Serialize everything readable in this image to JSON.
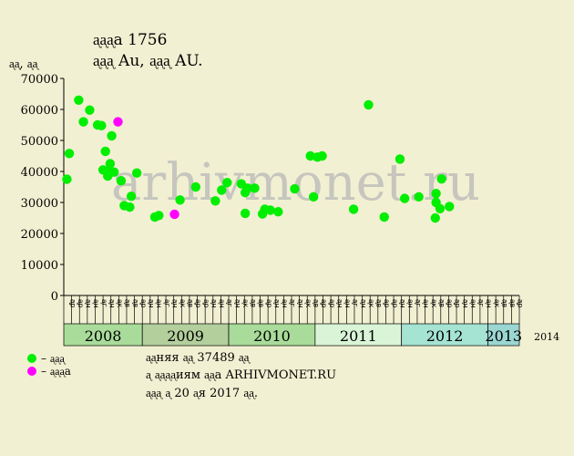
{
  "header": {
    "title": "ᶏᶏᶏа 1756",
    "subtitle": "ᶏᶏᶏ Au, ᶏᶏᶏ AU.",
    "y_unit": "ᶏᶏ, ᶏᶏ"
  },
  "watermark": "arhivmonet.ru",
  "legend": {
    "items": [
      {
        "label": "– ᶏᶏᶏ",
        "color": "#00ee00"
      },
      {
        "label": "– ᶏᶏᶏа",
        "color": "#ff00ff"
      }
    ]
  },
  "footer": {
    "lines": [
      "ᶏᶏняя ᶏᶏ 37489 ᶏᶏ",
      "ᶏ ᶏᶏᶏᶏиям ᶏᶏа ARHIVMONET.RU",
      "ᶏᶏᶏ ᶏ 20 ᶏя 2017 ᶏᶏ."
    ]
  },
  "colors": {
    "background": "#f2f0d2",
    "sold": "#00ee00",
    "highlight": "#ff00ff"
  },
  "chart_data": {
    "type": "scatter",
    "ylim": [
      0,
      70000
    ],
    "yticks": [
      0,
      10000,
      20000,
      30000,
      40000,
      50000,
      60000,
      70000
    ],
    "grid": false,
    "month_labels": [
      "ᶏр",
      "ᶏр",
      "ᶏн",
      "ᶏн",
      "ᶏг",
      "ᶏн",
      "ᶏк",
      "ᶏв",
      "ᶏв",
      "ᶏр",
      "ᶏн",
      "ᶏн",
      "ᶏг",
      "ᶏн",
      "ᶏк",
      "ᶏв",
      "ᶏр",
      "ᶏр",
      "ᶏн",
      "ᶏн",
      "ᶏг",
      "ᶏн",
      "ᶏк",
      "ᶏв",
      "ᶏв",
      "ᶏр",
      "ᶏн",
      "ᶏн",
      "ᶏг",
      "ᶏн",
      "ᶏк",
      "ᶏв",
      "ᶏр",
      "ᶏр",
      "ᶏн",
      "ᶏн",
      "ᶏг",
      "ᶏн",
      "ᶏк",
      "ᶏв",
      "ᶏр",
      "ᶏр",
      "ᶏн",
      "ᶏн",
      "ᶏг",
      "ᶏн",
      "ᶏк",
      "ᶏв",
      "ᶏр",
      "ᶏр",
      "ᶏн",
      "ᶏн",
      "ᶏг",
      "ᶏн",
      "ᶏк",
      "ᶏв",
      "ᶏв",
      "ᶏр"
    ],
    "years": [
      {
        "label": "2008",
        "start": 0,
        "count": 10,
        "color": "#a9dc9a"
      },
      {
        "label": "2009",
        "start": 10,
        "count": 11,
        "color": "#b3cf9c"
      },
      {
        "label": "2010",
        "start": 21,
        "count": 11,
        "color": "#a9dc9a"
      },
      {
        "label": "2011",
        "start": 32,
        "count": 11,
        "color": "#d9f4d6"
      },
      {
        "label": "2012",
        "start": 43,
        "count": 11,
        "color": "#a5e3d3"
      },
      {
        "label": "2013",
        "start": 54,
        "count": 11,
        "color": "#9ad6d2"
      },
      {
        "label": "2014",
        "start": 65,
        "count": 4,
        "color": "#cfeee0",
        "small": true
      }
    ],
    "series": [
      {
        "name": "",
        "color": "#00ee00",
        "points": [
          {
            "x": 0.4,
            "y": 37500
          },
          {
            "x": 0.7,
            "y": 45800
          },
          {
            "x": 1.9,
            "y": 63000
          },
          {
            "x": 2.5,
            "y": 56000
          },
          {
            "x": 3.3,
            "y": 59800
          },
          {
            "x": 4.3,
            "y": 55000
          },
          {
            "x": 4.8,
            "y": 54800
          },
          {
            "x": 5.0,
            "y": 40500
          },
          {
            "x": 5.3,
            "y": 46500
          },
          {
            "x": 5.6,
            "y": 38500
          },
          {
            "x": 5.7,
            "y": 40000
          },
          {
            "x": 5.9,
            "y": 42500
          },
          {
            "x": 6.1,
            "y": 51500
          },
          {
            "x": 6.4,
            "y": 39800
          },
          {
            "x": 7.3,
            "y": 37000
          },
          {
            "x": 7.7,
            "y": 29000
          },
          {
            "x": 8.4,
            "y": 28500
          },
          {
            "x": 8.6,
            "y": 32000
          },
          {
            "x": 9.3,
            "y": 39500
          },
          {
            "x": 11.6,
            "y": 25300
          },
          {
            "x": 12.1,
            "y": 25800
          },
          {
            "x": 14.8,
            "y": 30800
          },
          {
            "x": 16.8,
            "y": 35000
          },
          {
            "x": 19.3,
            "y": 30500
          },
          {
            "x": 20.1,
            "y": 34000
          },
          {
            "x": 20.8,
            "y": 36400
          },
          {
            "x": 22.6,
            "y": 36000
          },
          {
            "x": 23.1,
            "y": 33200
          },
          {
            "x": 23.1,
            "y": 26500
          },
          {
            "x": 23.4,
            "y": 34600
          },
          {
            "x": 24.3,
            "y": 34600
          },
          {
            "x": 25.3,
            "y": 26300
          },
          {
            "x": 25.6,
            "y": 27800
          },
          {
            "x": 26.3,
            "y": 27500
          },
          {
            "x": 27.3,
            "y": 27000
          },
          {
            "x": 29.4,
            "y": 34400
          },
          {
            "x": 31.4,
            "y": 45000
          },
          {
            "x": 31.8,
            "y": 31800
          },
          {
            "x": 32.3,
            "y": 44600
          },
          {
            "x": 32.9,
            "y": 45000
          },
          {
            "x": 36.9,
            "y": 27800
          },
          {
            "x": 38.8,
            "y": 61500
          },
          {
            "x": 40.8,
            "y": 25300
          },
          {
            "x": 42.8,
            "y": 44000
          },
          {
            "x": 43.4,
            "y": 31300
          },
          {
            "x": 45.2,
            "y": 31800
          },
          {
            "x": 47.3,
            "y": 25000
          },
          {
            "x": 47.4,
            "y": 30000
          },
          {
            "x": 47.4,
            "y": 32900
          },
          {
            "x": 47.9,
            "y": 28000
          },
          {
            "x": 48.1,
            "y": 37600
          },
          {
            "x": 49.1,
            "y": 28700
          }
        ]
      },
      {
        "name": "",
        "color": "#ff00ff",
        "points": [
          {
            "x": 6.9,
            "y": 56000
          },
          {
            "x": 14.1,
            "y": 26200
          }
        ]
      }
    ]
  }
}
